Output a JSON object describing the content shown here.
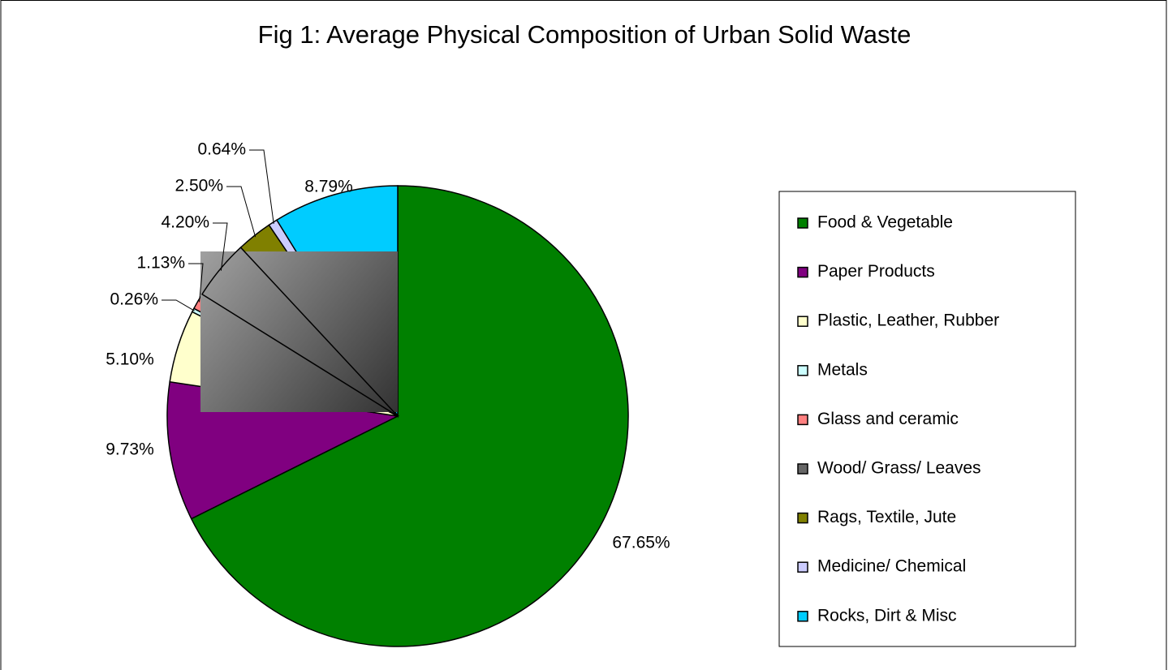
{
  "chart_data": {
    "type": "pie",
    "title": "Fig 1: Average Physical Composition of Urban Solid Waste",
    "categories": [
      "Food & Vegetable",
      "Paper Products",
      "Plastic, Leather, Rubber",
      "Metals",
      "Glass and ceramic",
      "Wood/ Grass/ Leaves",
      "Rags, Textile, Jute",
      "Medicine/ Chemical",
      "Rocks, Dirt & Misc"
    ],
    "values": [
      67.65,
      9.73,
      5.1,
      0.26,
      1.13,
      4.2,
      2.5,
      0.64,
      8.79
    ],
    "value_labels": [
      "67.65%",
      "9.73%",
      "5.10%",
      "0.26%",
      "1.13%",
      "4.20%",
      "2.50%",
      "0.64%",
      "8.79%"
    ],
    "colors": [
      "#008000",
      "#800080",
      "#ffffcc",
      "#ccffff",
      "#ff8080",
      "#808080",
      "#808000",
      "#ccccff",
      "#00ccff"
    ],
    "legend": "right"
  }
}
